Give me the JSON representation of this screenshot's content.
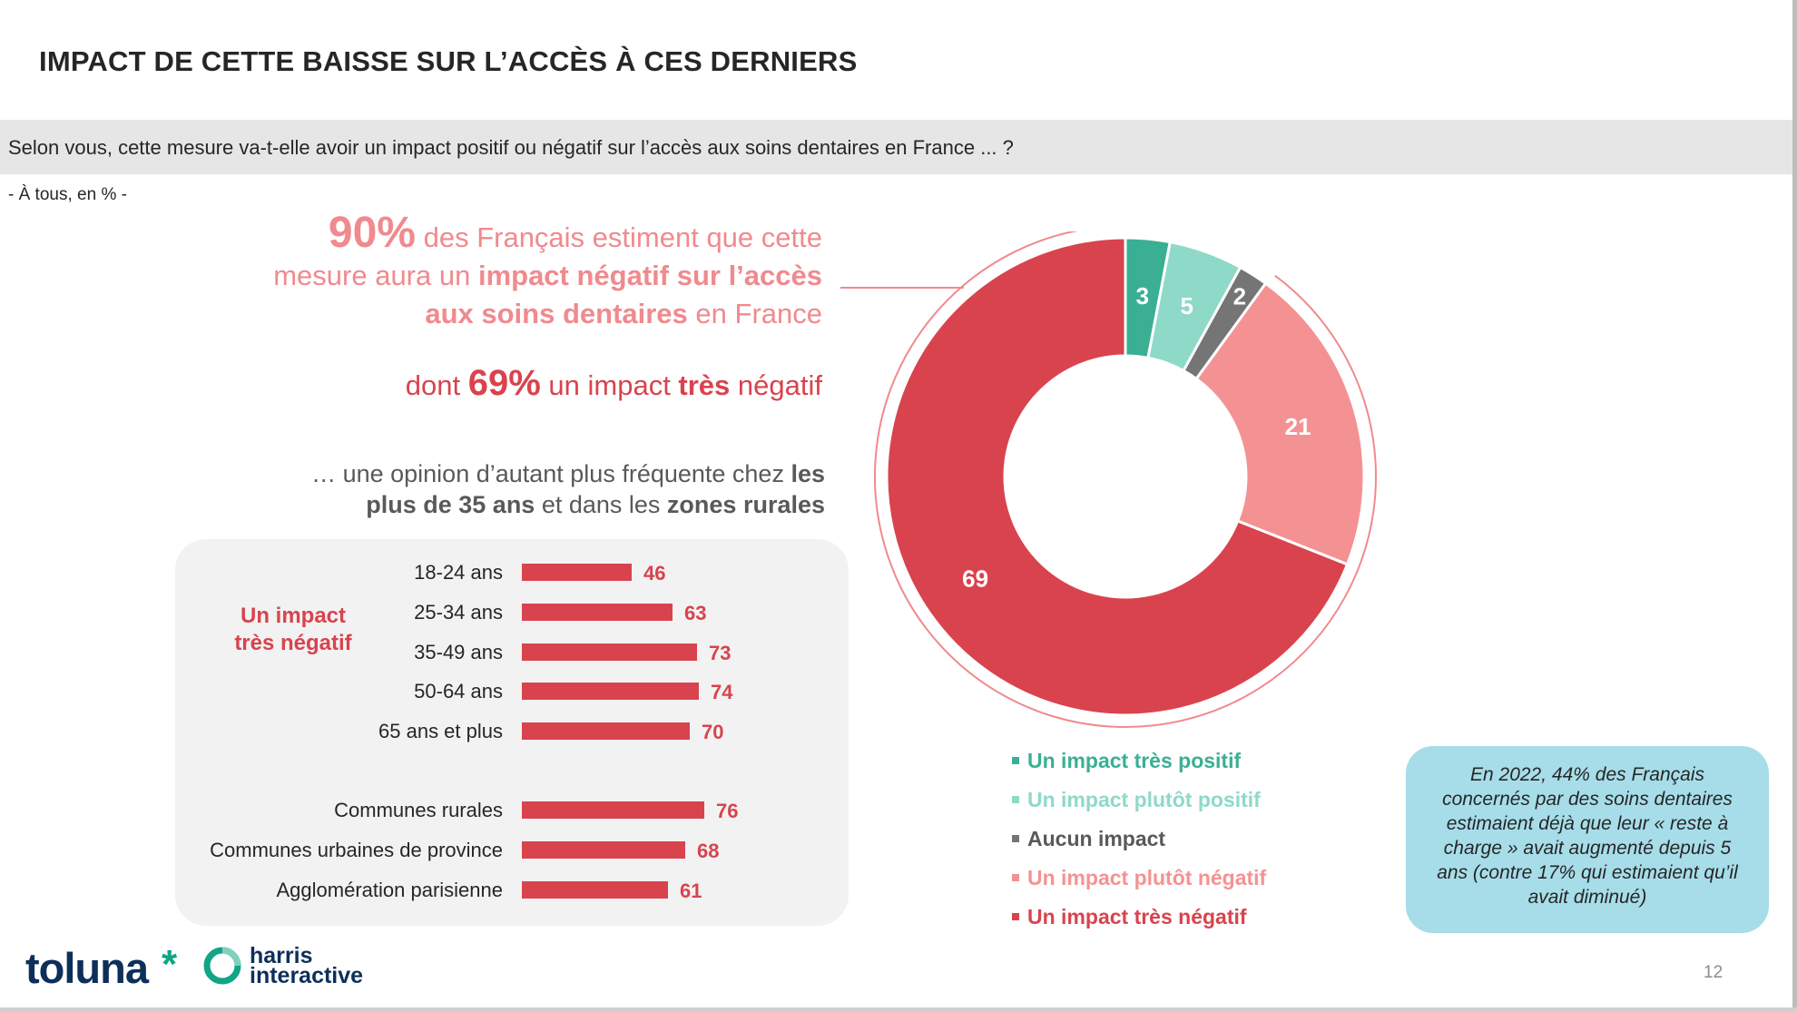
{
  "title": "IMPACT DE CETTE BAISSE SUR L’ACCÈS À CES DERNIERS",
  "question": "Selon vous, cette mesure va-t-elle avoir un impact positif ou négatif sur l’accès aux soins dentaires en France ... ?",
  "base": "- À tous, en % -",
  "headline": {
    "pct": "90%",
    "t1": " des Français estiment que cette",
    "t2": "mesure aura un ",
    "t2b": "impact négatif sur l’accès",
    "t3b": "aux soins dentaires",
    "t3": " en France"
  },
  "dont": {
    "t1": "dont ",
    "pct": "69%",
    "t2": " un impact ",
    "t3": "très",
    "t4": " négatif"
  },
  "opinion": {
    "t1": "… une opinion d’autant plus fréquente chez ",
    "b1": "les",
    "b2": "plus de 35 ans",
    "t2": " et dans les ",
    "b3": "zones rurales"
  },
  "panel_label": {
    "line1": "Un impact",
    "line2": "très négatif"
  },
  "colors": {
    "very_positive": "#3aaf94",
    "rather_positive": "#8fd9c9",
    "no_impact": "#757575",
    "rather_negative": "#f49293",
    "very_negative": "#d9434e",
    "outline": "#f08a8e"
  },
  "chart_data": [
    {
      "type": "pie",
      "variant": "donut",
      "categories": [
        "Un impact très positif",
        "Un impact plutôt positif",
        "Aucun impact",
        "Un impact plutôt négatif",
        "Un impact très négatif"
      ],
      "values": [
        3,
        5,
        2,
        21,
        69
      ],
      "colors": [
        "#3aaf94",
        "#8fd9c9",
        "#757575",
        "#f49293",
        "#d9434e"
      ],
      "legend": "bottom"
    },
    {
      "type": "bar",
      "orientation": "horizontal",
      "series": [
        {
          "name": "Un impact très négatif",
          "values": [
            46,
            63,
            73,
            74,
            70,
            76,
            68,
            61
          ]
        }
      ],
      "categories": [
        "18-24 ans",
        "25-34 ans",
        "35-49 ans",
        "50-64 ans",
        "65 ans et plus",
        "Communes rurales",
        "Communes urbaines de province",
        "Agglomération parisienne"
      ]
    }
  ],
  "note": "En 2022, 44% des Français concernés par des soins dentaires estimaient déjà que leur « reste à charge » avait augmenté depuis 5 ans (contre 17% qui estimaient qu’il avait diminué)",
  "logo": {
    "toluna": "toluna",
    "star": "*",
    "harris1": "harris",
    "harris2": "interactive"
  },
  "page_number": "12"
}
